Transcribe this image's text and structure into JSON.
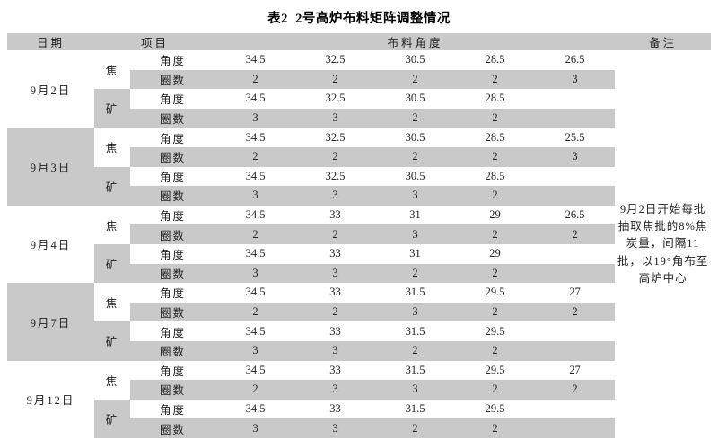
{
  "title": "表2  2号高炉布料矩阵调整情况",
  "table": {
    "headers": {
      "date": "日期",
      "item": "项目",
      "angle_group": "布料角度",
      "remark": "备注"
    },
    "row_labels": {
      "angle": "角度",
      "rings": "圈数"
    },
    "groups": [
      {
        "date": "9月2日",
        "materials": [
          {
            "name": "焦",
            "angle": [
              "34.5",
              "32.5",
              "30.5",
              "28.5",
              "26.5"
            ],
            "rings": [
              "2",
              "2",
              "2",
              "2",
              "3"
            ]
          },
          {
            "name": "矿",
            "angle": [
              "34.5",
              "32.5",
              "30.5",
              "28.5",
              ""
            ],
            "rings": [
              "3",
              "3",
              "2",
              "2",
              ""
            ]
          }
        ]
      },
      {
        "date": "9月3日",
        "materials": [
          {
            "name": "焦",
            "angle": [
              "34.5",
              "32.5",
              "30.5",
              "28.5",
              "25.5"
            ],
            "rings": [
              "2",
              "2",
              "2",
              "2",
              "3"
            ]
          },
          {
            "name": "矿",
            "angle": [
              "34.5",
              "32.5",
              "30.5",
              "28.5",
              ""
            ],
            "rings": [
              "3",
              "3",
              "3",
              "2",
              ""
            ]
          }
        ]
      },
      {
        "date": "9月4日",
        "materials": [
          {
            "name": "焦",
            "angle": [
              "34.5",
              "33",
              "31",
              "29",
              "26.5"
            ],
            "rings": [
              "2",
              "2",
              "3",
              "2",
              "2"
            ]
          },
          {
            "name": "矿",
            "angle": [
              "34.5",
              "33",
              "31",
              "29",
              ""
            ],
            "rings": [
              "3",
              "3",
              "2",
              "2",
              ""
            ]
          }
        ]
      },
      {
        "date": "9月7日",
        "materials": [
          {
            "name": "焦",
            "angle": [
              "34.5",
              "33",
              "31.5",
              "29.5",
              "27"
            ],
            "rings": [
              "2",
              "2",
              "3",
              "2",
              "2"
            ]
          },
          {
            "name": "矿",
            "angle": [
              "34.5",
              "33",
              "31.5",
              "29.5",
              ""
            ],
            "rings": [
              "3",
              "3",
              "2",
              "2",
              ""
            ]
          }
        ]
      },
      {
        "date": "9月12日",
        "materials": [
          {
            "name": "焦",
            "angle": [
              "34.5",
              "33",
              "31.5",
              "29.5",
              "27"
            ],
            "rings": [
              "2",
              "3",
              "3",
              "2",
              "2"
            ]
          },
          {
            "name": "矿",
            "angle": [
              "34.5",
              "33",
              "31.5",
              "29.5",
              ""
            ],
            "rings": [
              "3",
              "3",
              "2",
              "2",
              ""
            ]
          }
        ]
      }
    ],
    "remark": "9月2日开始每批抽取焦批的8%焦炭量，间隔11批，以19°角布至高炉中心"
  },
  "colors": {
    "stripe": "#c9c9c9",
    "text": "#222222",
    "background": "#ffffff"
  }
}
